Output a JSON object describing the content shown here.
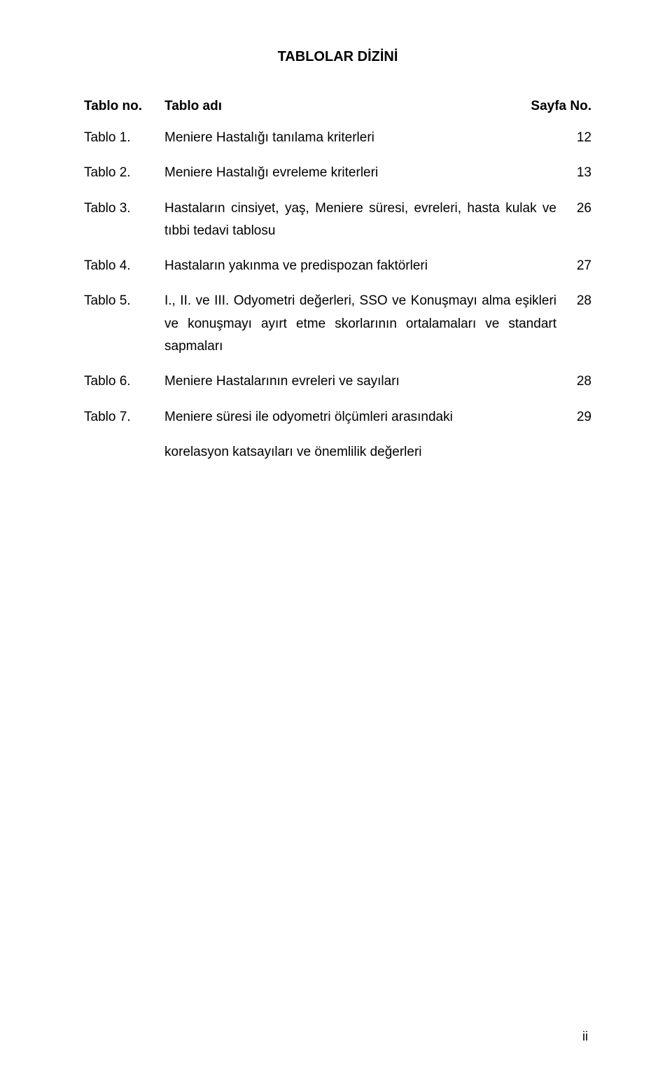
{
  "page": {
    "title": "TABLOLAR DİZİNİ",
    "page_number": "ii",
    "background_color": "#ffffff",
    "text_color": "#000000",
    "font_family": "Tahoma, Verdana, sans-serif",
    "title_fontsize": 20,
    "body_fontsize": 19
  },
  "header": {
    "col_no": "Tablo no.",
    "col_title": "Tablo adı",
    "col_page": "Sayfa No."
  },
  "entries": [
    {
      "no": "Tablo 1.",
      "title": "Meniere Hastalığı tanılama kriterleri",
      "page": "12"
    },
    {
      "no": "Tablo 2.",
      "title": "Meniere Hastalığı evreleme kriterleri",
      "page": "13"
    },
    {
      "no": "Tablo 3.",
      "title": "Hastaların cinsiyet, yaş, Meniere süresi, evreleri, hasta kulak ve tıbbi tedavi tablosu",
      "page": "26"
    },
    {
      "no": "Tablo 4.",
      "title": "Hastaların yakınma ve predispozan faktörleri",
      "page": "27"
    },
    {
      "no": "Tablo 5.",
      "title": "I., II. ve III. Odyometri değerleri, SSO ve Konuşmayı alma eşikleri ve konuşmayı ayırt etme skorlarının ortalamaları ve standart sapmaları",
      "page": "28"
    },
    {
      "no": "Tablo 6.",
      "title": "Meniere Hastalarının evreleri ve sayıları",
      "page": "28"
    },
    {
      "no": "Tablo 7.",
      "title": "Meniere süresi ile odyometri ölçümleri arasındaki",
      "page": "29"
    }
  ],
  "footer_entry": {
    "no": "",
    "title": "korelasyon katsayıları ve önemlilik değerleri"
  }
}
